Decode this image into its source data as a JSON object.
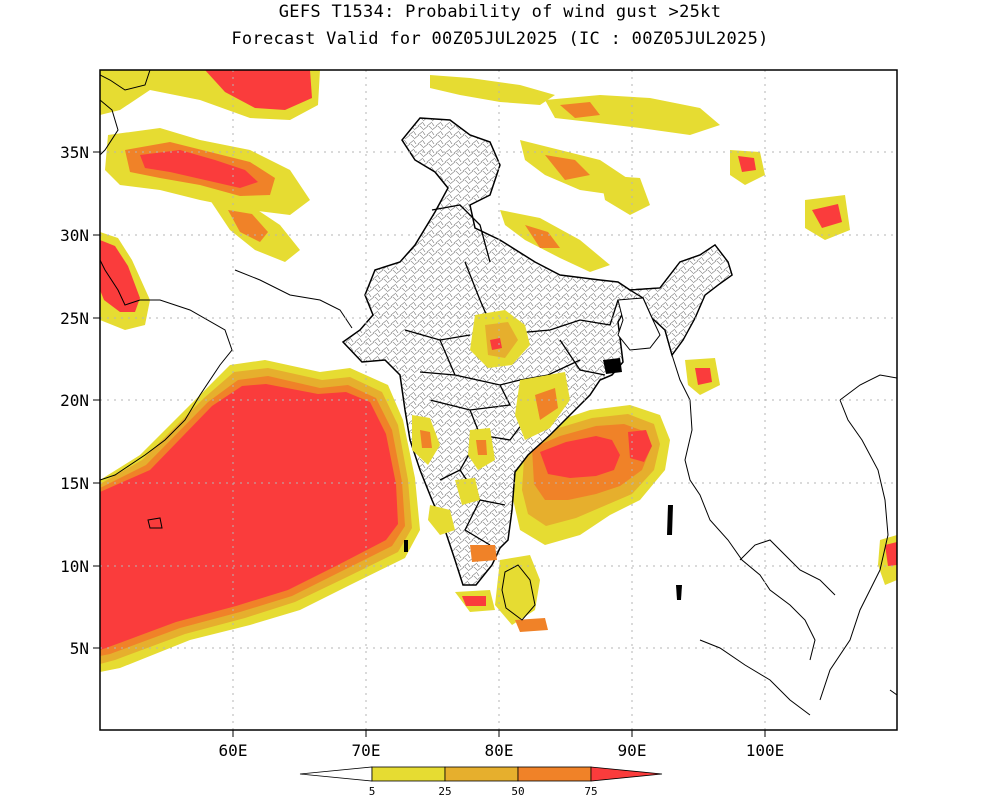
{
  "title_line1": "GEFS T1534: Probability of wind gust >25kt",
  "title_line2": "Forecast Valid for 00Z05JUL2025 (IC : 00Z05JUL2025)",
  "lon_labels": [
    "60E",
    "70E",
    "80E",
    "90E",
    "100E"
  ],
  "lat_labels": [
    "35N",
    "30N",
    "25N",
    "20N",
    "15N",
    "10N",
    "5N"
  ],
  "colorbar": {
    "ticks": [
      "5",
      "25",
      "50",
      "75"
    ],
    "colors": [
      "#e6dc32",
      "#e6af2d",
      "#f08228",
      "#fa3c3c"
    ]
  },
  "colors": {
    "land_outline": "#000000",
    "district_lines": "#8c8c8c",
    "grid": "#b4b4b4"
  }
}
